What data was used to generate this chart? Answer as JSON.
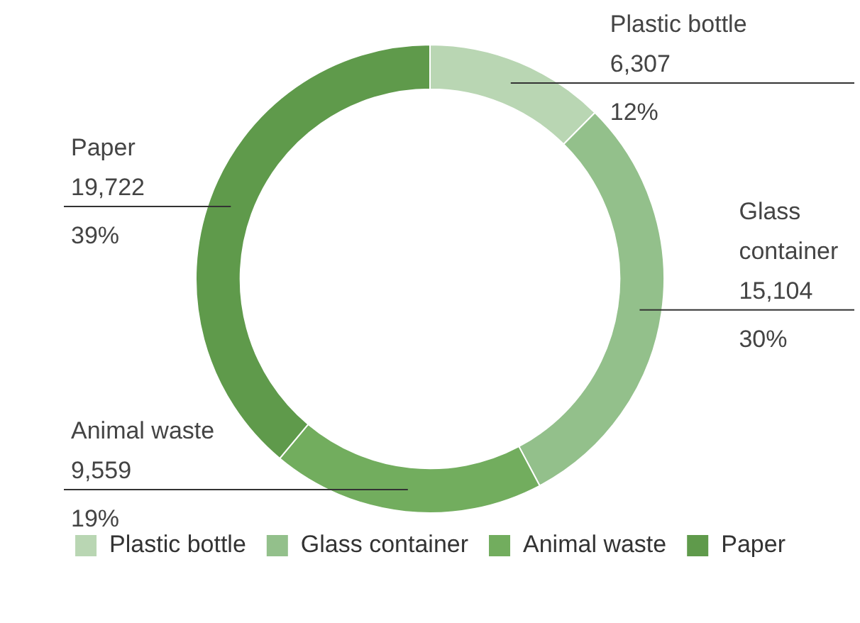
{
  "chart_data": {
    "type": "donut",
    "categories": [
      "Plastic bottle",
      "Glass container",
      "Animal waste",
      "Paper"
    ],
    "values": [
      6307,
      15104,
      9559,
      19722
    ],
    "colors": [
      "#b9d6b3",
      "#93c08b",
      "#72ad5e",
      "#5f9a4b"
    ],
    "value_labels": [
      "6,307\n12%",
      "15,104\n30%",
      "9,559\n19%",
      "19,722\n39%"
    ],
    "legend": "bottom"
  }
}
